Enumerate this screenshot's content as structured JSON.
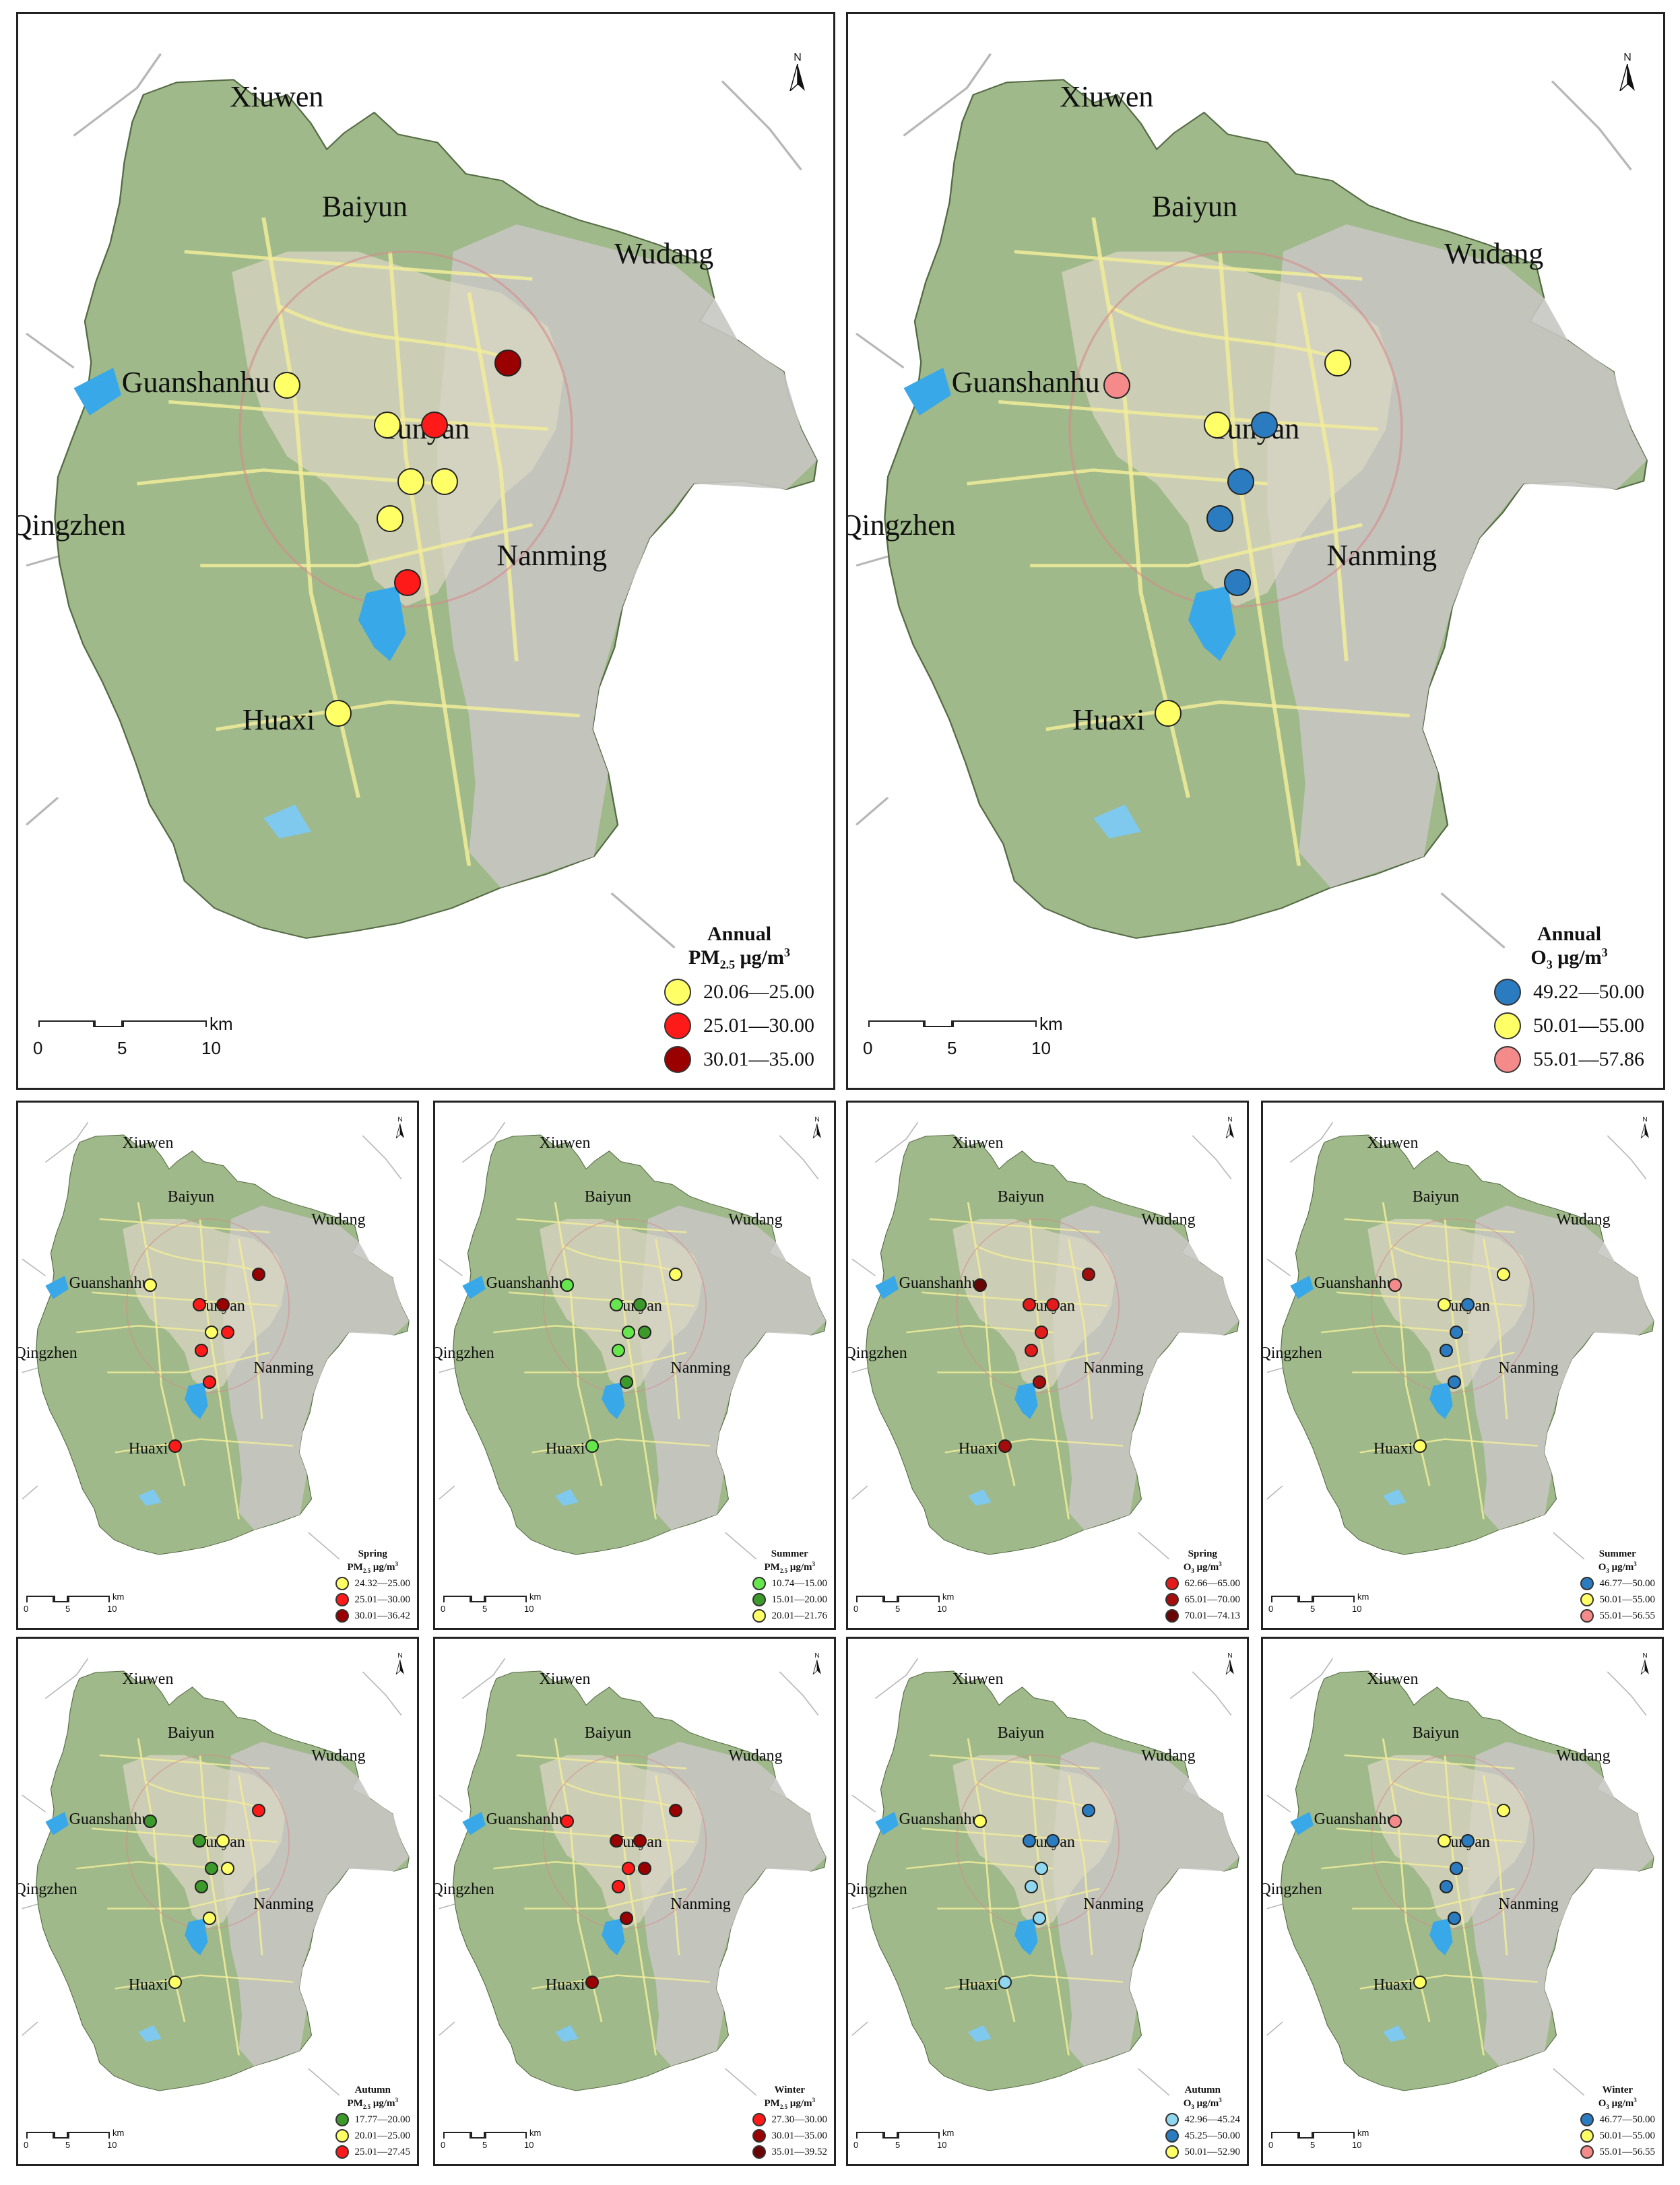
{
  "labels": {
    "xiuwen": "Xiuwen",
    "baiyun": "Baiyun",
    "wudang": "Wudang",
    "guanshanhu": "Guanshanhu",
    "yunyan": "Yunyan",
    "qingzhen": "Qingzhen",
    "nanming": "Nanming",
    "huaxi": "Huaxi"
  },
  "north": "N",
  "scale": {
    "unit": "km",
    "ticks": [
      "0",
      "5",
      "10"
    ]
  },
  "colors": {
    "pm_yellow": "#ffff66",
    "pm_red": "#ff1a1a",
    "pm_dark": "#9b0000",
    "pm_lgreen": "#66e64d",
    "pm_green": "#3c9a2a",
    "o3_blue": "#2b7bc0",
    "o3_lblue": "#8fd6ee",
    "o3_pink": "#f58a8a",
    "o3_red": "#e41b1b",
    "o3_dred": "#a50d0d",
    "o3_ddred": "#6a0505"
  },
  "panels": [
    {
      "id": "annual-pm25",
      "legend": {
        "title": "Annual",
        "pollutant": "PM",
        "sub": "2.5",
        "unit": " μg/m",
        "sup": "3",
        "classes": [
          {
            "range": "20.06—25.00",
            "color": "#ffff66"
          },
          {
            "range": "25.01—30.00",
            "color": "#ff1a1a"
          },
          {
            "range": "30.01—35.00",
            "color": "#9b0000"
          }
        ]
      },
      "stations": [
        {
          "site": "guanshanhu",
          "cls": 0
        },
        {
          "site": "yunyan-w",
          "cls": 0
        },
        {
          "site": "yunyan-e",
          "cls": 1
        },
        {
          "site": "northeast",
          "cls": 2
        },
        {
          "site": "center-w",
          "cls": 0
        },
        {
          "site": "center-e",
          "cls": 0
        },
        {
          "site": "lake",
          "cls": 0
        },
        {
          "site": "south",
          "cls": 1
        },
        {
          "site": "huaxi",
          "cls": 0
        }
      ]
    },
    {
      "id": "annual-o3",
      "legend": {
        "title": "Annual",
        "pollutant": "O",
        "sub": "3",
        "unit": " μg/m",
        "sup": "3",
        "classes": [
          {
            "range": "49.22—50.00",
            "color": "#2b7bc0"
          },
          {
            "range": "50.01—55.00",
            "color": "#ffff66"
          },
          {
            "range": "55.01—57.86",
            "color": "#f58a8a"
          }
        ]
      },
      "stations": [
        {
          "site": "guanshanhu",
          "cls": 2
        },
        {
          "site": "yunyan-w",
          "cls": 1
        },
        {
          "site": "yunyan-e",
          "cls": 0
        },
        {
          "site": "northeast",
          "cls": 1
        },
        {
          "site": "center-w",
          "cls": 0
        },
        {
          "site": "lake",
          "cls": 0
        },
        {
          "site": "south",
          "cls": 0
        },
        {
          "site": "huaxi",
          "cls": 1
        }
      ]
    },
    {
      "id": "spring-pm25",
      "legend": {
        "title": "Spring",
        "pollutant": "PM",
        "sub": "2.5",
        "unit": " μg/m",
        "sup": "3",
        "classes": [
          {
            "range": "24.32—25.00",
            "color": "#ffff66"
          },
          {
            "range": "25.01—30.00",
            "color": "#ff1a1a"
          },
          {
            "range": "30.01—36.42",
            "color": "#9b0000"
          }
        ]
      },
      "stations": [
        {
          "site": "guanshanhu",
          "cls": 0
        },
        {
          "site": "yunyan-w",
          "cls": 1
        },
        {
          "site": "yunyan-e",
          "cls": 2
        },
        {
          "site": "northeast",
          "cls": 2
        },
        {
          "site": "center-w",
          "cls": 0
        },
        {
          "site": "center-e",
          "cls": 1
        },
        {
          "site": "lake",
          "cls": 1
        },
        {
          "site": "south",
          "cls": 1
        },
        {
          "site": "huaxi",
          "cls": 1
        }
      ]
    },
    {
      "id": "summer-pm25",
      "legend": {
        "title": "Summer",
        "pollutant": "PM",
        "sub": "2.5",
        "unit": " μg/m",
        "sup": "3",
        "classes": [
          {
            "range": "10.74—15.00",
            "color": "#66e64d"
          },
          {
            "range": "15.01—20.00",
            "color": "#3c9a2a"
          },
          {
            "range": "20.01—21.76",
            "color": "#ffff66"
          }
        ]
      },
      "stations": [
        {
          "site": "guanshanhu",
          "cls": 0
        },
        {
          "site": "yunyan-w",
          "cls": 0
        },
        {
          "site": "yunyan-e",
          "cls": 1
        },
        {
          "site": "northeast",
          "cls": 2
        },
        {
          "site": "center-w",
          "cls": 0
        },
        {
          "site": "center-e",
          "cls": 1
        },
        {
          "site": "lake",
          "cls": 0
        },
        {
          "site": "south",
          "cls": 1
        },
        {
          "site": "huaxi",
          "cls": 0
        }
      ]
    },
    {
      "id": "spring-o3",
      "legend": {
        "title": "Spring",
        "pollutant": "O",
        "sub": "3",
        "unit": " μg/m",
        "sup": "3",
        "classes": [
          {
            "range": "62.66—65.00",
            "color": "#e41b1b"
          },
          {
            "range": "65.01—70.00",
            "color": "#a50d0d"
          },
          {
            "range": "70.01—74.13",
            "color": "#6a0505"
          }
        ]
      },
      "stations": [
        {
          "site": "guanshanhu",
          "cls": 2
        },
        {
          "site": "yunyan-w",
          "cls": 0
        },
        {
          "site": "yunyan-e",
          "cls": 0
        },
        {
          "site": "northeast",
          "cls": 1
        },
        {
          "site": "center-w",
          "cls": 0
        },
        {
          "site": "lake",
          "cls": 0
        },
        {
          "site": "south",
          "cls": 1
        },
        {
          "site": "huaxi",
          "cls": 1
        }
      ]
    },
    {
      "id": "summer-o3",
      "legend": {
        "title": "Summer",
        "pollutant": "O",
        "sub": "3",
        "unit": " μg/m",
        "sup": "3",
        "classes": [
          {
            "range": "46.77—50.00",
            "color": "#2b7bc0"
          },
          {
            "range": "50.01—55.00",
            "color": "#ffff66"
          },
          {
            "range": "55.01—56.55",
            "color": "#f58a8a"
          }
        ]
      },
      "stations": [
        {
          "site": "guanshanhu",
          "cls": 2
        },
        {
          "site": "yunyan-w",
          "cls": 1
        },
        {
          "site": "yunyan-e",
          "cls": 0
        },
        {
          "site": "northeast",
          "cls": 1
        },
        {
          "site": "center-w",
          "cls": 0
        },
        {
          "site": "lake",
          "cls": 0
        },
        {
          "site": "south",
          "cls": 0
        },
        {
          "site": "huaxi",
          "cls": 1
        }
      ]
    },
    {
      "id": "autumn-pm25",
      "legend": {
        "title": "Autumn",
        "pollutant": "PM",
        "sub": "2.5",
        "unit": " μg/m",
        "sup": "3",
        "classes": [
          {
            "range": "17.77—20.00",
            "color": "#3c9a2a"
          },
          {
            "range": "20.01—25.00",
            "color": "#ffff66"
          },
          {
            "range": "25.01—27.45",
            "color": "#ff1a1a"
          }
        ]
      },
      "stations": [
        {
          "site": "guanshanhu",
          "cls": 0
        },
        {
          "site": "yunyan-w",
          "cls": 0
        },
        {
          "site": "yunyan-e",
          "cls": 1
        },
        {
          "site": "northeast",
          "cls": 2
        },
        {
          "site": "center-w",
          "cls": 0
        },
        {
          "site": "center-e",
          "cls": 1
        },
        {
          "site": "lake",
          "cls": 0
        },
        {
          "site": "south",
          "cls": 1
        },
        {
          "site": "huaxi",
          "cls": 1
        }
      ]
    },
    {
      "id": "winter-pm25",
      "legend": {
        "title": "Winter",
        "pollutant": "PM",
        "sub": "2.5",
        "unit": " μg/m",
        "sup": "3",
        "classes": [
          {
            "range": "27.30—30.00",
            "color": "#ff1a1a"
          },
          {
            "range": "30.01—35.00",
            "color": "#9b0000"
          },
          {
            "range": "35.01—39.52",
            "color": "#6a0505"
          }
        ]
      },
      "stations": [
        {
          "site": "guanshanhu",
          "cls": 0
        },
        {
          "site": "yunyan-w",
          "cls": 1
        },
        {
          "site": "yunyan-e",
          "cls": 1
        },
        {
          "site": "northeast",
          "cls": 1
        },
        {
          "site": "center-w",
          "cls": 0
        },
        {
          "site": "center-e",
          "cls": 1
        },
        {
          "site": "lake",
          "cls": 0
        },
        {
          "site": "south",
          "cls": 1
        },
        {
          "site": "huaxi",
          "cls": 1
        }
      ]
    },
    {
      "id": "autumn-o3",
      "legend": {
        "title": "Autumn",
        "pollutant": "O",
        "sub": "3",
        "unit": " μg/m",
        "sup": "3",
        "classes": [
          {
            "range": "42.96—45.24",
            "color": "#8fd6ee"
          },
          {
            "range": "45.25—50.00",
            "color": "#2b7bc0"
          },
          {
            "range": "50.01—52.90",
            "color": "#ffff66"
          }
        ]
      },
      "stations": [
        {
          "site": "guanshanhu",
          "cls": 2
        },
        {
          "site": "yunyan-w",
          "cls": 1
        },
        {
          "site": "yunyan-e",
          "cls": 1
        },
        {
          "site": "northeast",
          "cls": 1
        },
        {
          "site": "center-w",
          "cls": 0
        },
        {
          "site": "lake",
          "cls": 0
        },
        {
          "site": "south",
          "cls": 0
        },
        {
          "site": "huaxi",
          "cls": 0
        }
      ]
    },
    {
      "id": "winter-o3",
      "legend": {
        "title": "Winter",
        "pollutant": "O",
        "sub": "3",
        "unit": " μg/m",
        "sup": "3",
        "classes": [
          {
            "range": "46.77—50.00",
            "color": "#2b7bc0"
          },
          {
            "range": "50.01—55.00",
            "color": "#ffff66"
          },
          {
            "range": "55.01—56.55",
            "color": "#f58a8a"
          }
        ]
      },
      "stations": [
        {
          "site": "guanshanhu",
          "cls": 2
        },
        {
          "site": "yunyan-w",
          "cls": 1
        },
        {
          "site": "yunyan-e",
          "cls": 0
        },
        {
          "site": "northeast",
          "cls": 1
        },
        {
          "site": "center-w",
          "cls": 0
        },
        {
          "site": "lake",
          "cls": 0
        },
        {
          "site": "south",
          "cls": 0
        },
        {
          "site": "huaxi",
          "cls": 1
        }
      ]
    }
  ]
}
